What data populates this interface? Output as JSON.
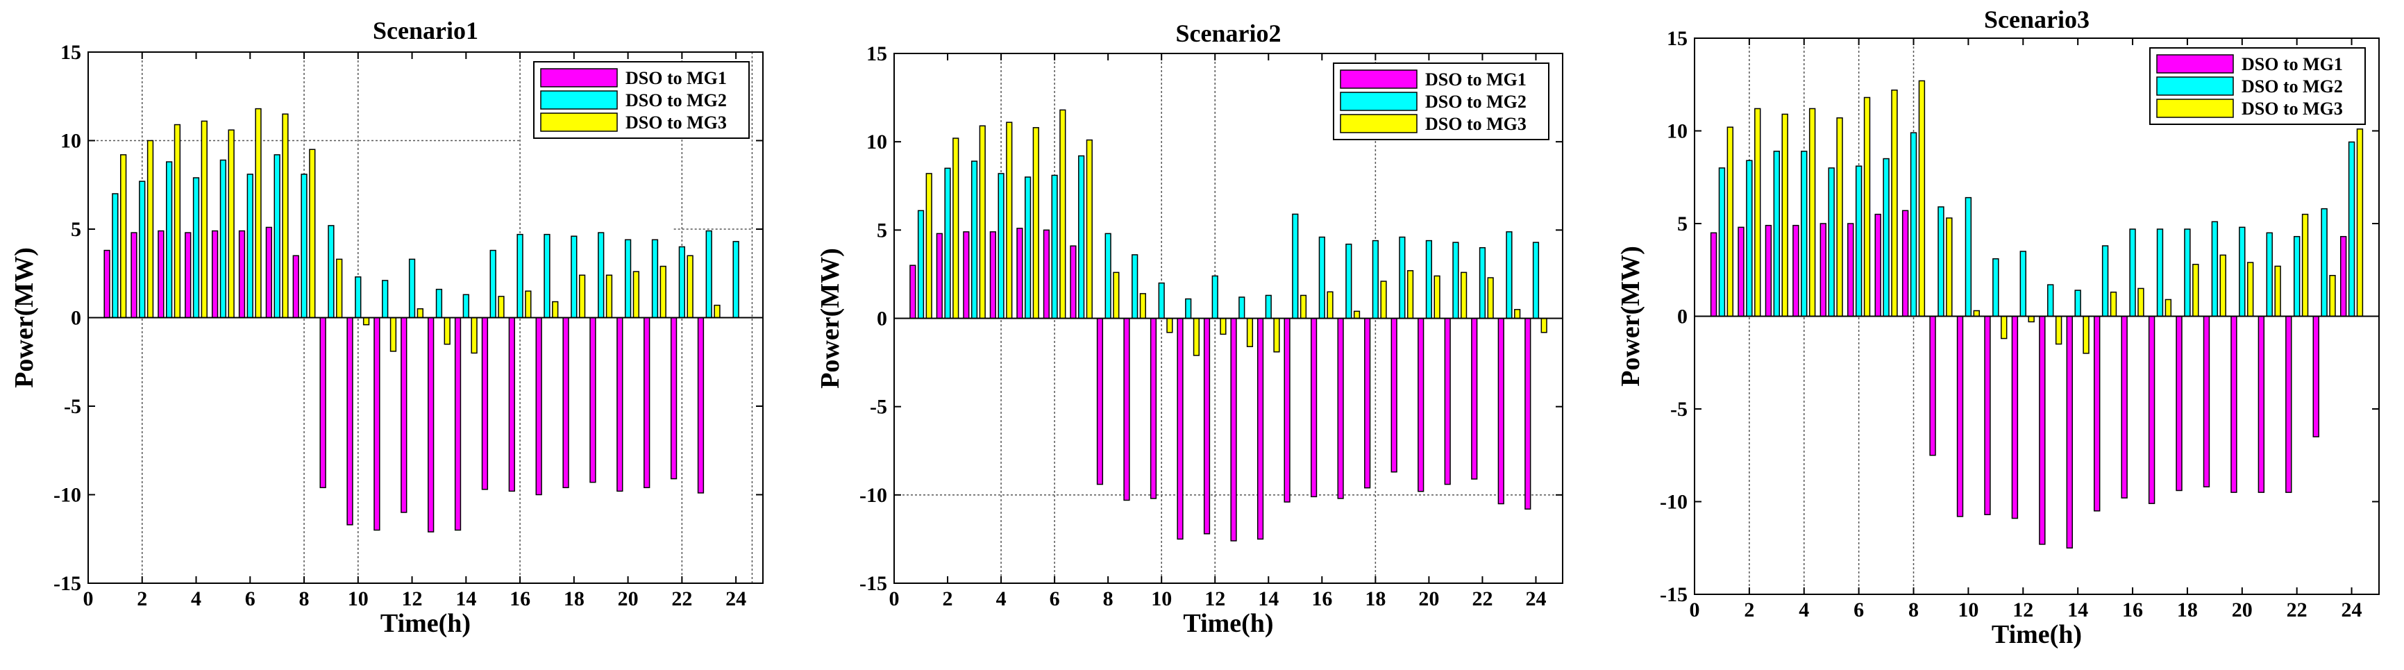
{
  "chart_data": [
    {
      "type": "bar",
      "title": "Scenario1",
      "xlabel": "Time(h)",
      "ylabel": "Power(MW)",
      "xlim": [
        0,
        25
      ],
      "ylim": [
        -15,
        15
      ],
      "xticks": [
        0,
        2,
        4,
        6,
        8,
        10,
        12,
        14,
        16,
        18,
        20,
        22,
        24
      ],
      "yticks": [
        -15,
        -10,
        -5,
        0,
        5,
        10,
        15
      ],
      "legend_position": "top-right",
      "x": [
        1,
        2,
        3,
        4,
        5,
        6,
        7,
        8,
        9,
        10,
        11,
        12,
        13,
        14,
        15,
        16,
        17,
        18,
        19,
        20,
        21,
        22,
        23,
        24
      ],
      "series": [
        {
          "name": "DSO to MG1",
          "color": "#ff00ff",
          "values": [
            3.8,
            4.8,
            4.9,
            4.8,
            4.9,
            4.9,
            5.1,
            3.5,
            -9.6,
            -11.7,
            -12.0,
            -11.0,
            -12.1,
            -12.0,
            -9.7,
            -9.8,
            -10.0,
            -9.6,
            -9.3,
            -9.8,
            -9.6,
            -9.1,
            -9.9,
            0
          ]
        },
        {
          "name": "DSO to MG2",
          "color": "#00ffff",
          "values": [
            7.0,
            7.7,
            8.8,
            7.9,
            8.9,
            8.1,
            9.2,
            8.1,
            5.2,
            2.3,
            2.1,
            3.3,
            1.6,
            1.3,
            3.8,
            4.7,
            4.7,
            4.6,
            4.8,
            4.4,
            4.4,
            4.0,
            4.9,
            4.3
          ]
        },
        {
          "name": "DSO to MG3",
          "color": "#ffff00",
          "values": [
            9.2,
            10.0,
            10.9,
            11.1,
            10.6,
            11.8,
            11.5,
            9.5,
            3.3,
            -0.4,
            -1.9,
            0.5,
            -1.5,
            -2.0,
            1.2,
            1.5,
            0.9,
            2.4,
            2.4,
            2.6,
            2.9,
            3.5,
            0.7,
            0
          ]
        }
      ]
    },
    {
      "type": "bar",
      "title": "Scenario2",
      "xlabel": "Time(h)",
      "ylabel": "Power(MW)",
      "xlim": [
        0,
        25
      ],
      "ylim": [
        -15,
        15
      ],
      "xticks": [
        0,
        2,
        4,
        6,
        8,
        10,
        12,
        14,
        16,
        18,
        20,
        22,
        24
      ],
      "yticks": [
        -15,
        -10,
        -5,
        0,
        5,
        10,
        15
      ],
      "legend_position": "top-right",
      "x": [
        1,
        2,
        3,
        4,
        5,
        6,
        7,
        8,
        9,
        10,
        11,
        12,
        13,
        14,
        15,
        16,
        17,
        18,
        19,
        20,
        21,
        22,
        23,
        24
      ],
      "series": [
        {
          "name": "DSO to MG1",
          "color": "#ff00ff",
          "values": [
            3.0,
            4.8,
            4.9,
            4.9,
            5.1,
            5.0,
            4.1,
            -9.4,
            -10.3,
            -10.2,
            -12.5,
            -12.2,
            -12.6,
            -12.5,
            -10.4,
            -10.1,
            -10.2,
            -9.6,
            -8.7,
            -9.8,
            -9.4,
            -9.1,
            -10.5,
            -10.8
          ]
        },
        {
          "name": "DSO to MG2",
          "color": "#00ffff",
          "values": [
            6.1,
            8.5,
            8.9,
            8.2,
            8.0,
            8.1,
            9.2,
            4.8,
            3.6,
            2.0,
            1.1,
            2.4,
            1.2,
            1.3,
            5.9,
            4.6,
            4.2,
            4.4,
            4.6,
            4.4,
            4.3,
            4.0,
            4.9,
            4.3
          ]
        },
        {
          "name": "DSO to MG3",
          "color": "#ffff00",
          "values": [
            8.2,
            10.2,
            10.9,
            11.1,
            10.8,
            11.8,
            10.1,
            2.6,
            1.4,
            -0.8,
            -2.1,
            -0.9,
            -1.6,
            -1.9,
            1.3,
            1.5,
            0.4,
            2.1,
            2.7,
            2.4,
            2.6,
            2.3,
            0.5,
            -0.8
          ]
        }
      ]
    },
    {
      "type": "bar",
      "title": "Scenario3",
      "xlabel": "Time(h)",
      "ylabel": "Power(MW)",
      "xlim": [
        0,
        25
      ],
      "ylim": [
        -15,
        15
      ],
      "xticks": [
        0,
        2,
        4,
        6,
        8,
        10,
        12,
        14,
        16,
        18,
        20,
        22,
        24
      ],
      "yticks": [
        -15,
        -10,
        -5,
        0,
        5,
        10,
        15
      ],
      "legend_position": "top-right",
      "x": [
        1,
        2,
        3,
        4,
        5,
        6,
        7,
        8,
        9,
        10,
        11,
        12,
        13,
        14,
        15,
        16,
        17,
        18,
        19,
        20,
        21,
        22,
        23,
        24
      ],
      "series": [
        {
          "name": "DSO to MG1",
          "color": "#ff00ff",
          "values": [
            4.5,
            4.8,
            4.9,
            4.9,
            5.0,
            5.0,
            5.5,
            5.7,
            -7.5,
            -10.8,
            -10.7,
            -10.9,
            -12.3,
            -12.5,
            -10.5,
            -9.8,
            -10.1,
            -9.4,
            -9.2,
            -9.5,
            -9.5,
            -9.5,
            -6.5,
            4.3
          ]
        },
        {
          "name": "DSO to MG2",
          "color": "#00ffff",
          "values": [
            8.0,
            8.4,
            8.9,
            8.9,
            8.0,
            8.1,
            8.5,
            9.9,
            5.9,
            6.4,
            3.1,
            3.5,
            1.7,
            1.4,
            3.8,
            4.7,
            4.7,
            4.7,
            5.1,
            4.8,
            4.5,
            4.3,
            5.8,
            9.4
          ]
        },
        {
          "name": "DSO to MG3",
          "color": "#ffff00",
          "values": [
            10.2,
            11.2,
            10.9,
            11.2,
            10.7,
            11.8,
            12.2,
            12.7,
            5.3,
            0.3,
            -1.2,
            -0.3,
            -1.5,
            -2.0,
            1.3,
            1.5,
            0.9,
            2.8,
            3.3,
            2.9,
            2.7,
            5.5,
            2.2,
            10.1
          ]
        }
      ]
    }
  ]
}
